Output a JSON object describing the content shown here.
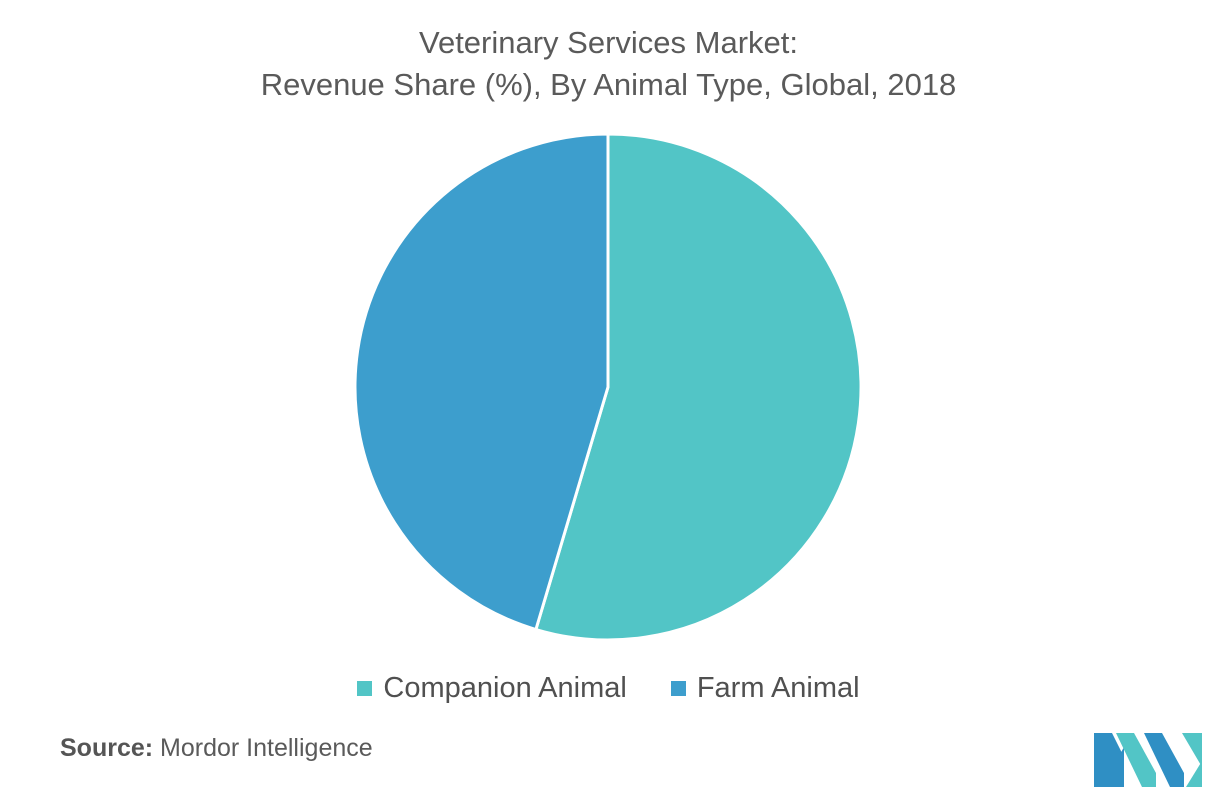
{
  "chart_data": {
    "type": "pie",
    "title": "Veterinary Services Market:",
    "subtitle": "Revenue Share (%), By Animal Type, Global, 2018",
    "categories": [
      "Companion Animal",
      "Farm Animal"
    ],
    "values": [
      54.6,
      45.4
    ],
    "colors": [
      "#52c5c6",
      "#3d9ecd"
    ],
    "legend_position": "bottom"
  },
  "source": {
    "label": "Source:",
    "text": "Mordor Intelligence"
  },
  "logo": {
    "icon": "mordor-intelligence-logo",
    "colors": [
      "#2f8fc4",
      "#52c5c6"
    ]
  }
}
